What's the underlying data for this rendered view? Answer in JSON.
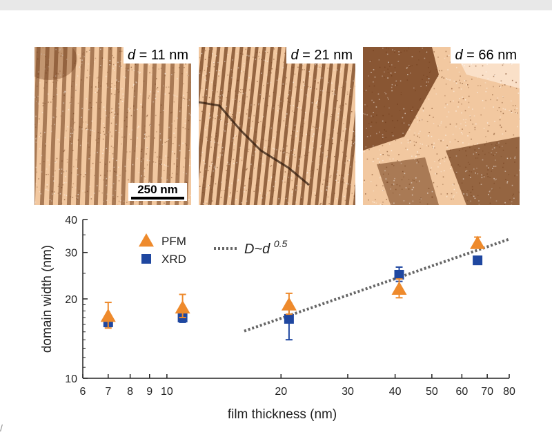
{
  "panels": [
    {
      "d_label": "d",
      "eq": " = ",
      "thickness": "11 nm",
      "scale_bar_label": "250 nm"
    },
    {
      "d_label": "d",
      "eq": " = ",
      "thickness": "21 nm"
    },
    {
      "d_label": "d",
      "eq": " = ",
      "thickness": "66 nm"
    }
  ],
  "colors": {
    "pfm": "#ee8a2c",
    "xrd": "#1f47a0",
    "fit": "#666666",
    "afm_light": "#f2c8a0",
    "afm_dark": "#6e3a18"
  },
  "chart_data": {
    "type": "scatter",
    "xlabel": "film thickness (nm)",
    "ylabel": "domain width (nm)",
    "xscale": "log",
    "yscale": "log",
    "xlim": [
      6,
      80
    ],
    "ylim": [
      10,
      40
    ],
    "xticks": [
      6,
      7,
      8,
      9,
      10,
      20,
      30,
      40,
      50,
      60,
      70,
      80
    ],
    "yticks_major": [
      10,
      20,
      30,
      40
    ],
    "grid": false,
    "legend_position": "upper-left",
    "series": [
      {
        "name": "PFM",
        "marker": "triangle",
        "color": "#ee8a2c",
        "points": [
          {
            "x": 7,
            "y": 17.2,
            "err_low": 1.7,
            "err_high": 2.2
          },
          {
            "x": 11,
            "y": 18.5,
            "err_low": 1.5,
            "err_high": 2.3
          },
          {
            "x": 21,
            "y": 19.0,
            "err_low": 1.5,
            "err_high": 2.0
          },
          {
            "x": 41,
            "y": 21.8,
            "err_low": 1.6,
            "err_high": 2.0
          },
          {
            "x": 66,
            "y": 32.5,
            "err_low": 1.2,
            "err_high": 1.8
          }
        ]
      },
      {
        "name": "XRD",
        "marker": "square",
        "color": "#1f47a0",
        "points": [
          {
            "x": 7,
            "y": 16.3,
            "err_low": 0.6,
            "err_high": 0.6
          },
          {
            "x": 11,
            "y": 17.0,
            "err_low": 0.7,
            "err_high": 0.7
          },
          {
            "x": 21,
            "y": 16.8,
            "err_low": 2.8,
            "err_high": 2.4
          },
          {
            "x": 41,
            "y": 24.7,
            "err_low": 1.4,
            "err_high": 1.7
          },
          {
            "x": 66,
            "y": 28.0,
            "err_low": 0.6,
            "err_high": 0.6
          }
        ]
      }
    ],
    "fit_line": {
      "label_prefix": "D~d",
      "label_exponent": "0.5",
      "style": "dotted",
      "color": "#666666",
      "x_range": [
        16,
        80
      ],
      "y_range": [
        15.1,
        33.7
      ]
    }
  },
  "edge_glyph": "/"
}
